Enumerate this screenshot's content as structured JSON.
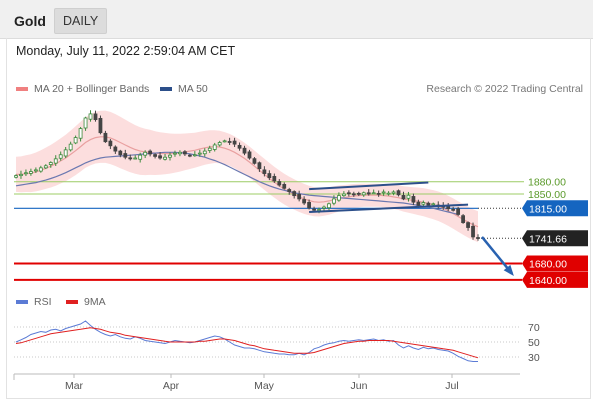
{
  "header": {
    "title": "Gold",
    "timeframe_tab": "DAILY"
  },
  "datetime": "Monday, July 11, 2022 2:59:04 AM CET",
  "legend": {
    "bollinger_label": "MA 20 + Bollinger Bands",
    "ma50_label": "MA 50",
    "credit": "Research © 2022 Trading Central",
    "rsi_label": "RSI",
    "rsi_ma_label": "9MA"
  },
  "colors": {
    "bollinger": "#f08080",
    "ma50": "#2c4f8a",
    "resistance": "#9ccc65",
    "support": "#e00000",
    "pivot": "#1565c0",
    "rsi": "#5b7bd5",
    "rsi_ma": "#e02020"
  },
  "chart_data": [
    {
      "type": "candlestick",
      "instrument": "Gold",
      "timeframe": "DAILY",
      "x_tick_labels": [
        "Mar",
        "Apr",
        "May",
        "Jun",
        "Jul"
      ],
      "ylim": [
        1620,
        2080
      ],
      "close_series": [
        1895,
        1898,
        1902,
        1905,
        1909,
        1914,
        1919,
        1927,
        1936,
        1946,
        1958,
        1972,
        1988,
        2010,
        2036,
        2046,
        2032,
        2000,
        1978,
        1968,
        1955,
        1946,
        1940,
        1936,
        1938,
        1945,
        1952,
        1948,
        1942,
        1938,
        1940,
        1945,
        1950,
        1952,
        1948,
        1944,
        1946,
        1950,
        1955,
        1962,
        1970,
        1976,
        1980,
        1978,
        1972,
        1962,
        1950,
        1938,
        1925,
        1912,
        1900,
        1890,
        1882,
        1872,
        1864,
        1856,
        1846,
        1838,
        1828,
        1816,
        1811,
        1812,
        1818,
        1826,
        1838,
        1846,
        1850,
        1852,
        1850,
        1851,
        1853,
        1850,
        1853,
        1851,
        1855,
        1852,
        1855,
        1848,
        1838,
        1847,
        1830,
        1822,
        1829,
        1823,
        1826,
        1822,
        1818,
        1814,
        1812,
        1800,
        1780,
        1768,
        1745,
        1741.66
      ],
      "ma20_series": [
        1898,
        1898,
        1900,
        1901,
        1904,
        1908,
        1913,
        1918,
        1924,
        1931,
        1938,
        1947,
        1956,
        1966,
        1976,
        1983,
        1988,
        1990,
        1990,
        1987,
        1982,
        1976,
        1970,
        1964,
        1959,
        1955,
        1953,
        1952,
        1950,
        1949,
        1949,
        1949,
        1950,
        1951,
        1953,
        1955,
        1957,
        1960,
        1963,
        1965,
        1966,
        1965,
        1962,
        1958,
        1952,
        1945,
        1937,
        1928,
        1918,
        1908,
        1898,
        1888,
        1879,
        1870,
        1862,
        1855,
        1849,
        1843,
        1838,
        1834,
        1831,
        1830,
        1831,
        1833,
        1836,
        1839,
        1841,
        1843,
        1845,
        1846,
        1847,
        1847,
        1847,
        1847,
        1846,
        1845,
        1843,
        1841,
        1838,
        1836,
        1834,
        1832,
        1830,
        1827,
        1824,
        1820,
        1815,
        1809,
        1802,
        1795,
        1788,
        1781,
        1775,
        1770
      ],
      "ma50_series": [
        1870,
        1872,
        1874,
        1876,
        1878,
        1881,
        1884,
        1888,
        1892,
        1897,
        1902,
        1908,
        1914,
        1920,
        1926,
        1931,
        1935,
        1938,
        1940,
        1941,
        1942,
        1943,
        1944,
        1945,
        1946,
        1947,
        1948,
        1949,
        1950,
        1951,
        1952,
        1952,
        1952,
        1951,
        1950,
        1948,
        1946,
        1943,
        1940,
        1936,
        1932,
        1927,
        1922,
        1916,
        1910,
        1904,
        1898,
        1892,
        1886,
        1880,
        1875,
        1870,
        1866,
        1862,
        1859,
        1856,
        1853,
        1851,
        1849,
        1847,
        1846,
        1845,
        1844,
        1843,
        1842,
        1841,
        1840,
        1839,
        1838,
        1837,
        1836,
        1835,
        1834,
        1833,
        1832,
        1831,
        1830,
        1829,
        1828,
        1826,
        1824,
        1822,
        1820,
        1818,
        1815,
        1812,
        1809,
        1806,
        1803,
        1800
      ],
      "levels": [
        {
          "value": 1880.0,
          "label": "1880.00",
          "kind": "resistance"
        },
        {
          "value": 1850.0,
          "label": "1850.00",
          "kind": "resistance"
        },
        {
          "value": 1815.0,
          "label": "1815.00",
          "kind": "pivot"
        },
        {
          "value": 1741.66,
          "label": "1741.66",
          "kind": "last"
        },
        {
          "value": 1680.0,
          "label": "1680.00",
          "kind": "support"
        },
        {
          "value": 1640.0,
          "label": "1640.00",
          "kind": "support"
        }
      ]
    },
    {
      "type": "line",
      "name": "RSI",
      "ylim": [
        10,
        90
      ],
      "y_tick_labels": [
        "70",
        "50",
        "30"
      ],
      "rsi_series": [
        50,
        53,
        56,
        60,
        62,
        64,
        63,
        66,
        67,
        65,
        68,
        70,
        72,
        74,
        78,
        72,
        67,
        63,
        60,
        58,
        60,
        57,
        55,
        54,
        57,
        55,
        52,
        51,
        50,
        49,
        48,
        50,
        52,
        51,
        50,
        49,
        50,
        52,
        54,
        56,
        58,
        57,
        54,
        50,
        46,
        44,
        42,
        42,
        41,
        39,
        37,
        36,
        35,
        34,
        34,
        33,
        33,
        35,
        33,
        36,
        41,
        43,
        46,
        48,
        49,
        51,
        52,
        51,
        52,
        53,
        52,
        53,
        54,
        52,
        53,
        51,
        52,
        46,
        42,
        45,
        42,
        40,
        43,
        41,
        42,
        40,
        39,
        38,
        35,
        31,
        28,
        25,
        24,
        24
      ],
      "ma9_series": [
        48,
        49,
        51,
        53,
        55,
        57,
        59,
        61,
        62,
        63,
        64,
        65,
        66,
        67,
        68,
        69,
        68,
        67,
        65,
        63,
        62,
        61,
        59,
        58,
        57,
        56,
        55,
        54,
        53,
        52,
        51,
        50,
        50,
        50,
        50,
        50,
        50,
        51,
        51,
        52,
        53,
        54,
        54,
        53,
        52,
        50,
        48,
        46,
        45,
        43,
        41,
        40,
        39,
        38,
        37,
        36,
        35,
        35,
        35,
        35,
        36,
        38,
        40,
        42,
        44,
        46,
        48,
        49,
        50,
        51,
        51,
        52,
        52,
        52,
        52,
        52,
        51,
        50,
        49,
        48,
        47,
        46,
        45,
        44,
        43,
        42,
        41,
        40,
        39,
        37,
        35,
        33,
        31,
        29
      ]
    }
  ]
}
